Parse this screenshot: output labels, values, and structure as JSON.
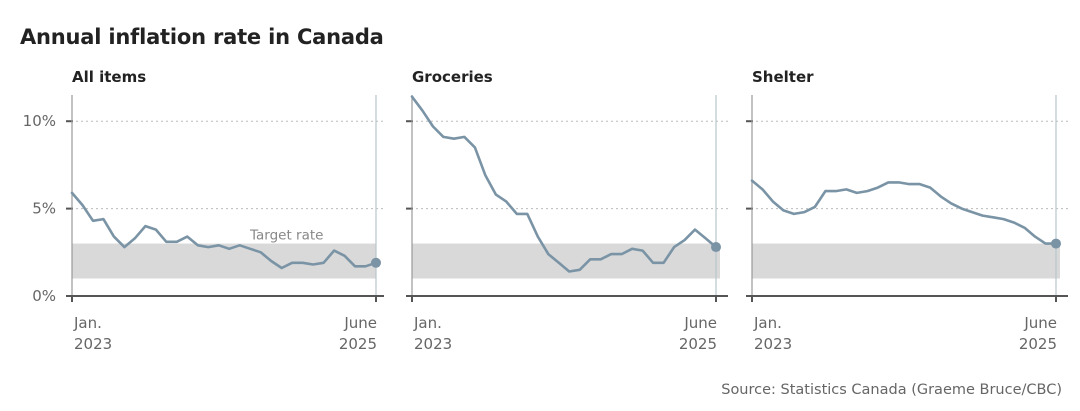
{
  "title": "Annual inflation rate in Canada",
  "source": "Source: Statistics Canada (Graeme Bruce/CBC)",
  "colors": {
    "line": "#7a94a6",
    "band": "#d9d9d9",
    "grid": "#bbbbbb",
    "axis": "#555555"
  },
  "chart_data": [
    {
      "type": "line",
      "title": "All items",
      "x_start": "Jan. 2023",
      "x_end": "June 2025",
      "xtick_labels": [
        [
          "Jan.",
          "2023"
        ],
        [
          "June",
          "2025"
        ]
      ],
      "ytick_labels": [
        "10%",
        "5%",
        "0%"
      ],
      "yticks": [
        10,
        5,
        0
      ],
      "ylim": [
        0,
        11.5
      ],
      "target_band": [
        1,
        3
      ],
      "annotation": "Target rate",
      "values": [
        5.9,
        5.2,
        4.3,
        4.4,
        3.4,
        2.8,
        3.3,
        4.0,
        3.8,
        3.1,
        3.1,
        3.4,
        2.9,
        2.8,
        2.9,
        2.7,
        2.9,
        2.7,
        2.5,
        2.0,
        1.6,
        1.9,
        1.9,
        1.8,
        1.9,
        2.6,
        2.3,
        1.7,
        1.7,
        1.9
      ]
    },
    {
      "type": "line",
      "title": "Groceries",
      "x_start": "Jan. 2023",
      "x_end": "June 2025",
      "xtick_labels": [
        [
          "Jan.",
          "2023"
        ],
        [
          "June",
          "2025"
        ]
      ],
      "yticks": [
        10,
        5,
        0
      ],
      "ylim": [
        0,
        11.5
      ],
      "target_band": [
        1,
        3
      ],
      "values": [
        11.4,
        10.6,
        9.7,
        9.1,
        9.0,
        9.1,
        8.5,
        6.9,
        5.8,
        5.4,
        4.7,
        4.7,
        3.4,
        2.4,
        1.9,
        1.4,
        1.5,
        2.1,
        2.1,
        2.4,
        2.4,
        2.7,
        2.6,
        1.9,
        1.9,
        2.8,
        3.2,
        3.8,
        3.3,
        2.8
      ]
    },
    {
      "type": "line",
      "title": "Shelter",
      "x_start": "Jan. 2023",
      "x_end": "June 2025",
      "xtick_labels": [
        [
          "Jan.",
          "2023"
        ],
        [
          "June",
          "2025"
        ]
      ],
      "yticks": [
        10,
        5,
        0
      ],
      "ylim": [
        0,
        11.5
      ],
      "target_band": [
        1,
        3
      ],
      "values": [
        6.6,
        6.1,
        5.4,
        4.9,
        4.7,
        4.8,
        5.1,
        6.0,
        6.0,
        6.1,
        5.9,
        6.0,
        6.2,
        6.5,
        6.5,
        6.4,
        6.4,
        6.2,
        5.7,
        5.3,
        5.0,
        4.8,
        4.6,
        4.5,
        4.4,
        4.2,
        3.9,
        3.4,
        3.0,
        3.0
      ]
    }
  ]
}
